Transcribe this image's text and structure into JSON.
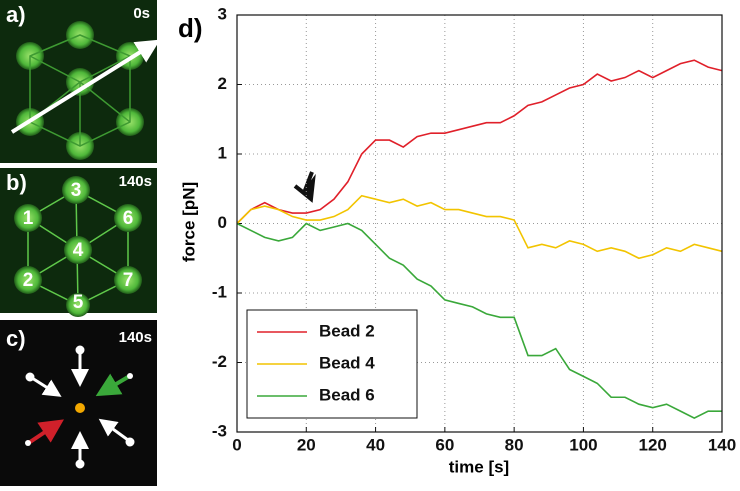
{
  "panels": [
    {
      "label": "a)",
      "time": "0s"
    },
    {
      "label": "b)",
      "time": "140s",
      "beads": [
        "3",
        "1",
        "6",
        "4",
        "2",
        "7",
        "5"
      ]
    },
    {
      "label": "c)",
      "time": "140s"
    }
  ],
  "chart_data": {
    "type": "line",
    "panel_label": "d)",
    "x_label": "time [s]",
    "y_label": "force [pN]",
    "x": [
      0,
      4,
      8,
      12,
      16,
      20,
      24,
      28,
      32,
      36,
      40,
      44,
      48,
      52,
      56,
      60,
      64,
      68,
      72,
      76,
      80,
      84,
      88,
      92,
      96,
      100,
      104,
      108,
      112,
      116,
      120,
      124,
      128,
      132,
      136,
      140
    ],
    "series": [
      {
        "name": "Bead 2",
        "color": "#e0202a",
        "values": [
          0,
          0.2,
          0.3,
          0.2,
          0.15,
          0.15,
          0.2,
          0.35,
          0.6,
          1.0,
          1.2,
          1.2,
          1.1,
          1.25,
          1.3,
          1.3,
          1.35,
          1.4,
          1.45,
          1.45,
          1.55,
          1.7,
          1.75,
          1.85,
          1.95,
          2.0,
          2.15,
          2.05,
          2.1,
          2.2,
          2.1,
          2.2,
          2.3,
          2.35,
          2.25,
          2.2
        ]
      },
      {
        "name": "Bead 4",
        "color": "#f2c400",
        "values": [
          0,
          0.2,
          0.25,
          0.2,
          0.1,
          0.05,
          0.05,
          0.1,
          0.2,
          0.4,
          0.35,
          0.3,
          0.35,
          0.25,
          0.3,
          0.2,
          0.2,
          0.15,
          0.1,
          0.1,
          0.05,
          -0.35,
          -0.3,
          -0.35,
          -0.25,
          -0.3,
          -0.4,
          -0.35,
          -0.4,
          -0.5,
          -0.45,
          -0.35,
          -0.4,
          -0.3,
          -0.35,
          -0.4
        ]
      },
      {
        "name": "Bead 6",
        "color": "#3aa83a",
        "values": [
          0,
          -0.1,
          -0.2,
          -0.25,
          -0.2,
          0.0,
          -0.1,
          -0.05,
          0.0,
          -0.1,
          -0.3,
          -0.5,
          -0.6,
          -0.8,
          -0.9,
          -1.1,
          -1.15,
          -1.2,
          -1.3,
          -1.35,
          -1.35,
          -1.9,
          -1.9,
          -1.8,
          -2.1,
          -2.2,
          -2.3,
          -2.5,
          -2.5,
          -2.6,
          -2.65,
          -2.6,
          -2.7,
          -2.8,
          -2.7,
          -2.7
        ]
      }
    ],
    "xlim": [
      0,
      140
    ],
    "xticks": [
      0,
      20,
      40,
      60,
      80,
      100,
      120,
      140
    ],
    "ylim": [
      -3,
      3
    ],
    "yticks": [
      -3,
      -2,
      -1,
      0,
      1,
      2,
      3
    ],
    "grid": true,
    "legend": "lower-left"
  }
}
